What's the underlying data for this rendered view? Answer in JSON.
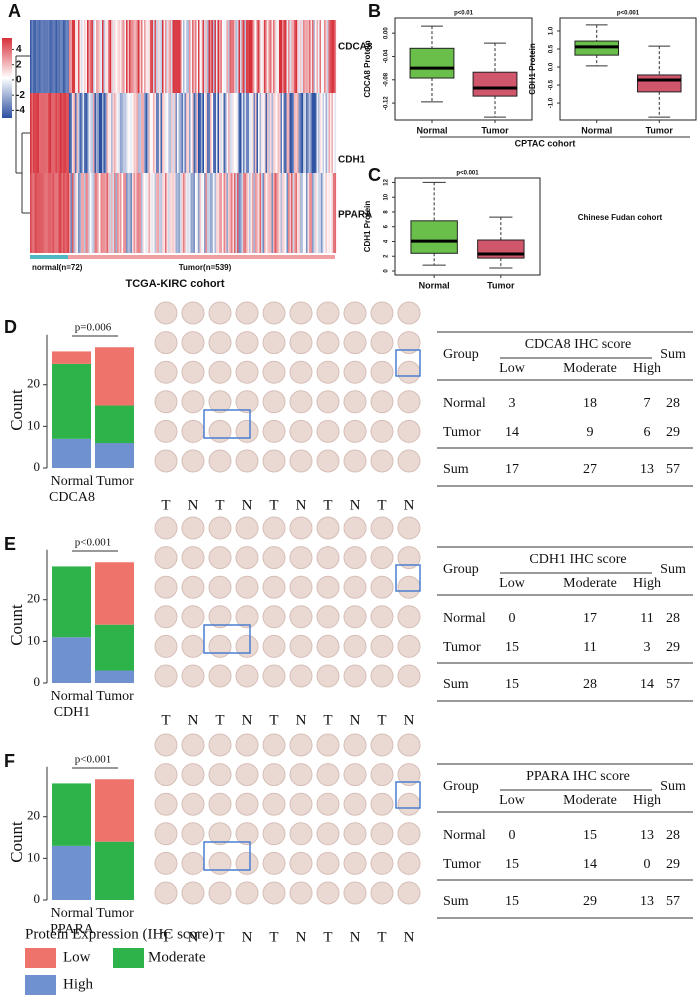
{
  "panel_labels": [
    "A",
    "B",
    "C",
    "D",
    "E",
    "F"
  ],
  "heatmap": {
    "genes": [
      "CDCA8",
      "CDH1",
      "PPARA"
    ],
    "groups": [
      "normal(n=72)",
      "Tumor(n=539)"
    ],
    "cohort": "TCGA-KIRC cohort",
    "scale_ticks": [
      4,
      2,
      0,
      -2,
      -4
    ],
    "scale_lim": [
      -5,
      5.5
    ]
  },
  "cptac": {
    "cohort": "CPTAC cohort",
    "plots": [
      {
        "type": "box",
        "title": "p<0.01",
        "ylabel": "CDCA8 Protein",
        "categories": [
          "Normal",
          "Tumor"
        ],
        "colors": [
          "#6abf4b",
          "#d0566c"
        ],
        "boxes": [
          {
            "min": -0.118,
            "q1": -0.077,
            "median": -0.06,
            "q3": -0.026,
            "max": 0.012
          },
          {
            "min": -0.144,
            "q1": -0.108,
            "median": -0.094,
            "q3": -0.067,
            "max": -0.017
          }
        ],
        "ylim": [
          -0.149,
          0.026
        ],
        "yticks": [
          {
            "value": 0,
            "label": "0.00"
          },
          -0.04,
          -0.08,
          -0.12
        ]
      },
      {
        "type": "box",
        "title": "p<0.001",
        "ylabel": "CDH1 Protein",
        "categories": [
          "Normal",
          "Tumor"
        ],
        "colors": [
          "#6abf4b",
          "#d0566c"
        ],
        "boxes": [
          {
            "min": 0.03,
            "q1": 0.33,
            "median": 0.56,
            "q3": 0.72,
            "max": 1.17
          },
          {
            "min": -1.39,
            "q1": -0.69,
            "median": -0.36,
            "q3": -0.22,
            "max": 0.58
          }
        ],
        "ylim": [
          -1.47,
          1.36
        ],
        "yticks": [
          {
            "value": 1,
            "label": "1.0"
          },
          0.5,
          {
            "value": 0,
            "label": "0.0"
          },
          -0.5,
          {
            "value": -1,
            "label": "-1.0"
          }
        ]
      }
    ]
  },
  "fudan": {
    "cohort": "Chinese Fudan cohort",
    "plot": {
      "type": "box",
      "title": "p<0.001",
      "ylabel": "CDH1 Protein",
      "categories": [
        "Normal",
        "Tumor"
      ],
      "colors": [
        "#6abf4b",
        "#d0566c"
      ],
      "boxes": [
        {
          "min": 0.8,
          "q1": 2.4,
          "median": 4.05,
          "q3": 6.8,
          "max": 12.0
        },
        {
          "min": 0.4,
          "q1": 1.75,
          "median": 2.3,
          "q3": 4.2,
          "max": 7.3
        }
      ],
      "ylim": [
        -0.54,
        12.6
      ],
      "yticks": [
        0,
        2,
        4,
        6,
        8,
        10,
        12
      ]
    }
  },
  "ihc": {
    "legend_title": "Protein Expression (IHC score)",
    "levels": [
      {
        "name": "Low",
        "color": "#ee746b"
      },
      {
        "name": "Moderate",
        "color": "#2db34a"
      },
      {
        "name": "High",
        "color": "#6f91cf"
      }
    ],
    "group_label": "Group",
    "sum_label": "Sum",
    "panels": [
      {
        "type": "stacked-bar",
        "gene": "CDCA8",
        "p": "p=0.006",
        "ylabel": "Count",
        "ylim": [
          0,
          32
        ],
        "yticks": [
          0,
          10,
          20
        ],
        "tma_labels": [
          "T",
          "N",
          "T",
          "N",
          "T",
          "N",
          "T",
          "N",
          "T",
          "N"
        ],
        "table": {
          "title": "CDCA8 IHC score",
          "rows": [
            {
              "group": "Normal",
              "values": [
                3,
                18,
                7
              ],
              "sum": 28
            },
            {
              "group": "Tumor",
              "values": [
                14,
                9,
                6
              ],
              "sum": 29
            }
          ],
          "total": {
            "values": [
              17,
              27,
              13
            ],
            "sum": 57
          }
        }
      },
      {
        "type": "stacked-bar",
        "gene": "CDH1",
        "p": "p<0.001",
        "ylabel": "Count",
        "ylim": [
          0,
          32
        ],
        "yticks": [
          0,
          10,
          20
        ],
        "tma_labels": [
          "T",
          "N",
          "T",
          "N",
          "T",
          "N",
          "T",
          "N",
          "T",
          "N"
        ],
        "table": {
          "title": "CDH1 IHC score",
          "rows": [
            {
              "group": "Normal",
              "values": [
                0,
                17,
                11
              ],
              "sum": 28
            },
            {
              "group": "Tumor",
              "values": [
                15,
                11,
                3
              ],
              "sum": 29
            }
          ],
          "total": {
            "values": [
              15,
              28,
              14
            ],
            "sum": 57
          }
        }
      },
      {
        "type": "stacked-bar",
        "gene": "PPARA",
        "p": "p<0.001",
        "ylabel": "Count",
        "ylim": [
          0,
          32
        ],
        "yticks": [
          0,
          10,
          20
        ],
        "tma_labels": [
          "T",
          "N",
          "T",
          "N",
          "T",
          "N",
          "T",
          "N",
          "T",
          "N"
        ],
        "table": {
          "title": "PPARA IHC score",
          "rows": [
            {
              "group": "Normal",
              "values": [
                0,
                15,
                13
              ],
              "sum": 28
            },
            {
              "group": "Tumor",
              "values": [
                15,
                14,
                0
              ],
              "sum": 29
            }
          ],
          "total": {
            "values": [
              15,
              29,
              13
            ],
            "sum": 57
          }
        }
      }
    ]
  }
}
